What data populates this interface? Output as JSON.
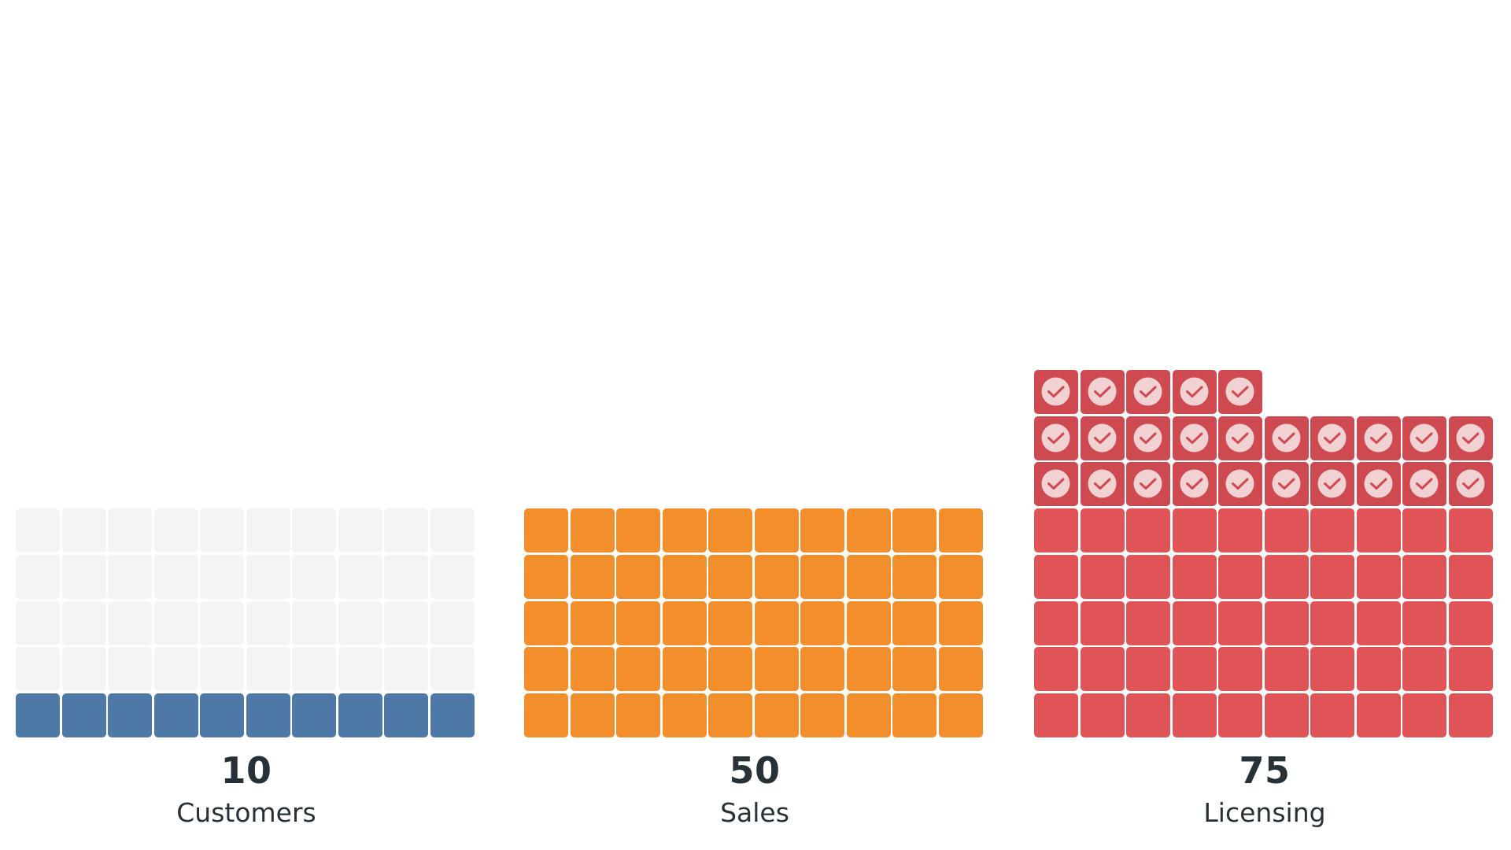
{
  "chart_data": {
    "type": "waffle",
    "title": "",
    "grid": {
      "columns": 10,
      "rows_per_block": 5,
      "units_per_block": 50
    },
    "series": [
      {
        "name": "Customers",
        "value": 10,
        "color": "#4e79a7",
        "empty_color": "#f4f4f4",
        "filled_units": 10,
        "empty_units": 40,
        "highlighted_units": 0
      },
      {
        "name": "Sales",
        "value": 50,
        "color": "#f28e2b",
        "empty_color": "#f4f4f4",
        "filled_units": 50,
        "empty_units": 0,
        "highlighted_units": 0
      },
      {
        "name": "Licensing",
        "value": 75,
        "color": "#e05458",
        "highlight_color": "#cf4a50",
        "highlight_icon": "check-circle-icon",
        "empty_color": "#f4f4f4",
        "filled_units": 50,
        "empty_units": 0,
        "highlighted_units": 25
      }
    ]
  },
  "charts": [
    {
      "value_text": "10",
      "label": "Customers"
    },
    {
      "value_text": "50",
      "label": "Sales"
    },
    {
      "value_text": "75",
      "label": "Licensing"
    }
  ],
  "colors": {
    "text": "#263238",
    "empty": "#f4f4f4",
    "check_circle": "#f2d1d3",
    "check_stroke": "#cf4a50"
  }
}
